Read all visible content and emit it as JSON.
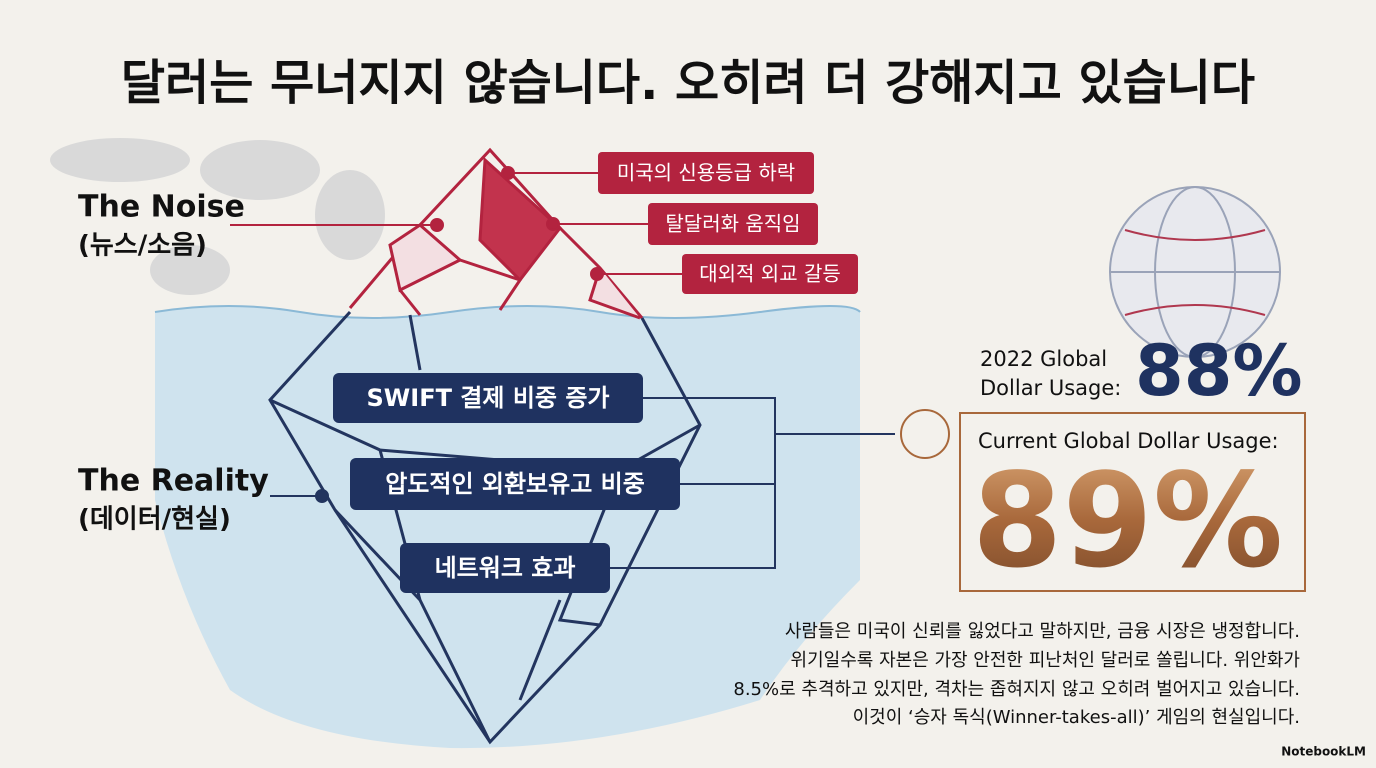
{
  "title": "달러는 무너지지 않습니다. 오히려 더 강해지고 있습니다",
  "noise": {
    "label": "The Noise",
    "sublabel": "(뉴스/소음)",
    "items": [
      "미국의 신용등급 하락",
      "탈달러화 움직임",
      "대외적 외교 갈등"
    ]
  },
  "reality": {
    "label": "The Reality",
    "sublabel": "(데이터/현실)",
    "items": [
      "SWIFT 결제 비중 증가",
      "압도적인 외환보유고 비중",
      "네트워크 효과"
    ]
  },
  "stats": [
    {
      "label_lines": [
        "2022 Global",
        "Dollar Usage:"
      ],
      "value": "88%"
    },
    {
      "label_lines": [
        "Current Global Dollar Usage:"
      ],
      "value": "89%"
    }
  ],
  "body": [
    "사람들은 미국이 신뢰를 잃었다고 말하지만, 금융 시장은 냉정합니다.",
    "위기일수록 자본은 가장 안전한 피난처인 달러로 쏠립니다. 위안화가",
    "8.5%로 추격하고 있지만, 격차는 좁혀지지 않고 오히려 벌어지고 있습니다.",
    "이것이 ‘승자 독식(Winner-takes-all)’ 게임의 현실입니다."
  ],
  "footer": "NotebookLM"
}
